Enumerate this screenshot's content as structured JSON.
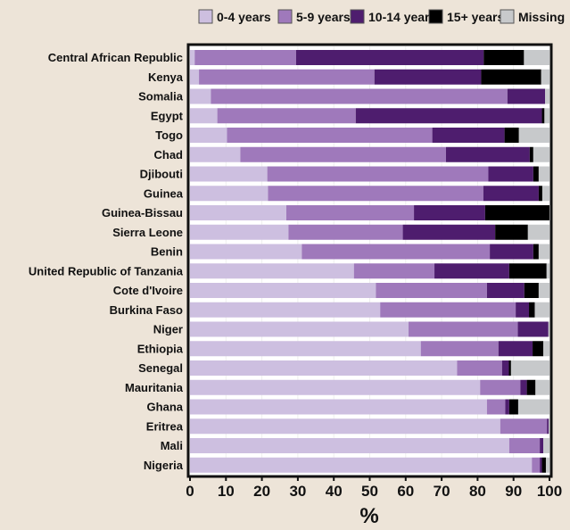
{
  "chart_data": {
    "type": "bar",
    "orientation": "horizontal",
    "stacked": true,
    "xlabel": "%",
    "xlim": [
      0,
      100
    ],
    "xticks": [
      0,
      10,
      20,
      30,
      40,
      50,
      60,
      70,
      80,
      90,
      100
    ],
    "legend_position": "top",
    "categories": [
      "Central African Republic",
      "Kenya",
      "Somalia",
      "Egypt",
      "Togo",
      "Chad",
      "Djibouti",
      "Guinea",
      "Guinea-Bissau",
      "Sierra Leone",
      "Benin",
      "United Republic of Tanzania",
      "Cote d'Ivoire",
      "Burkina Faso",
      "Niger",
      "Ethiopia",
      "Senegal",
      "Mauritania",
      "Ghana",
      "Eritrea",
      "Mali",
      "Nigeria"
    ],
    "series": [
      {
        "name": "0-4 years",
        "color": "#cdbfe0",
        "values": [
          1.3,
          2.5,
          5.8,
          7.6,
          10.3,
          14.0,
          21.5,
          21.7,
          26.8,
          27.4,
          31.1,
          45.6,
          51.7,
          52.9,
          60.8,
          64.2,
          74.3,
          80.7,
          82.6,
          86.3,
          88.8,
          95.1
        ]
      },
      {
        "name": "5-9 years",
        "color": "#9f79bb",
        "values": [
          28.2,
          48.8,
          82.5,
          38.5,
          57.1,
          57.2,
          61.5,
          59.9,
          35.5,
          31.8,
          52.3,
          22.4,
          30.9,
          37.7,
          30.4,
          21.6,
          12.5,
          11.2,
          5.1,
          13.0,
          8.5,
          2.2
        ]
      },
      {
        "name": "10-14 years",
        "color": "#4e1d6e",
        "values": [
          52.2,
          29.7,
          10.5,
          51.8,
          20.1,
          23.3,
          12.5,
          15.4,
          19.8,
          25.7,
          12.1,
          20.8,
          10.4,
          3.7,
          8.5,
          9.5,
          1.9,
          1.8,
          1.1,
          0.5,
          1.0,
          0.6
        ]
      },
      {
        "name": "15+ years",
        "color": "#000000",
        "values": [
          11.2,
          16.7,
          0,
          0.7,
          4.0,
          1.0,
          1.5,
          1.0,
          17.9,
          9.1,
          1.5,
          10.4,
          4.0,
          1.6,
          0,
          3.0,
          0.6,
          2.4,
          2.5,
          0,
          0,
          1.1
        ]
      },
      {
        "name": "Missing",
        "color": "#c7c9cb",
        "values": [
          7.1,
          2.3,
          1.2,
          1.4,
          8.5,
          4.5,
          3.0,
          2.0,
          0,
          6.0,
          3.0,
          0.8,
          3.0,
          4.1,
          0.3,
          1.7,
          10.7,
          3.9,
          8.7,
          0.2,
          1.7,
          1.0
        ]
      }
    ]
  }
}
